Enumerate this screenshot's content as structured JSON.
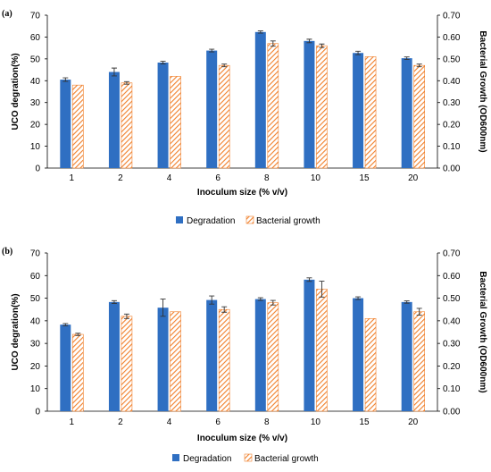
{
  "colors": {
    "degradation": "#2f6fc2",
    "bacterial": "#f07f2a"
  },
  "chart_data": [
    {
      "type": "bar",
      "panel_label": "(a)",
      "categories": [
        "1",
        "2",
        "4",
        "6",
        "8",
        "10",
        "15",
        "20"
      ],
      "xlabel": "Inoculum size (% v/v)",
      "ylabel": "UCO degration(%)",
      "y2label": "Bacterial Growth (OD600nm)",
      "ylim": [
        0,
        70
      ],
      "y2lim": [
        0,
        0.7
      ],
      "yticks": [
        "0",
        "10",
        "20",
        "30",
        "40",
        "50",
        "60",
        "70"
      ],
      "y2ticks": [
        "0.00",
        "0.10",
        "0.20",
        "0.30",
        "0.40",
        "0.50",
        "0.60",
        "0.70"
      ],
      "legend_position": "bottom-center",
      "grid": false,
      "series": [
        {
          "name": "Degradation",
          "axis": "left",
          "values": [
            40.5,
            44.0,
            48.3,
            53.8,
            62.3,
            58.2,
            52.7,
            50.3
          ],
          "errors": [
            0.8,
            1.8,
            0.6,
            0.6,
            0.5,
            0.8,
            0.8,
            0.6
          ]
        },
        {
          "name": "Bacterial growth",
          "axis": "right",
          "values": [
            0.38,
            0.39,
            0.42,
            0.47,
            0.57,
            0.56,
            0.51,
            0.47
          ],
          "errors": [
            0.0,
            0.006,
            0.0,
            0.006,
            0.012,
            0.008,
            0.0,
            0.006
          ]
        }
      ]
    },
    {
      "type": "bar",
      "panel_label": "(b)",
      "categories": [
        "1",
        "2",
        "4",
        "6",
        "8",
        "10",
        "15",
        "20"
      ],
      "xlabel": "Inoculum size (% v/v)",
      "ylabel": "UCO degration(%)",
      "y2label": "Bacterial Growth (OD600nm)",
      "ylim": [
        0,
        70
      ],
      "y2lim": [
        0,
        0.7
      ],
      "yticks": [
        "0",
        "10",
        "20",
        "30",
        "40",
        "50",
        "60",
        "70"
      ],
      "y2ticks": [
        "0.00",
        "0.10",
        "0.20",
        "0.30",
        "0.40",
        "0.50",
        "0.60",
        "0.70"
      ],
      "legend_position": "bottom-center",
      "grid": false,
      "series": [
        {
          "name": "Degradation",
          "axis": "left",
          "values": [
            38.3,
            48.3,
            45.8,
            49.2,
            49.6,
            58.2,
            50.0,
            48.3
          ],
          "errors": [
            0.5,
            0.6,
            3.8,
            1.8,
            0.6,
            0.8,
            0.6,
            0.5
          ]
        },
        {
          "name": "Bacterial growth",
          "axis": "right",
          "values": [
            0.34,
            0.42,
            0.44,
            0.45,
            0.48,
            0.54,
            0.41,
            0.44
          ],
          "errors": [
            0.005,
            0.01,
            0.0,
            0.012,
            0.01,
            0.035,
            0.0,
            0.015
          ]
        }
      ]
    }
  ]
}
